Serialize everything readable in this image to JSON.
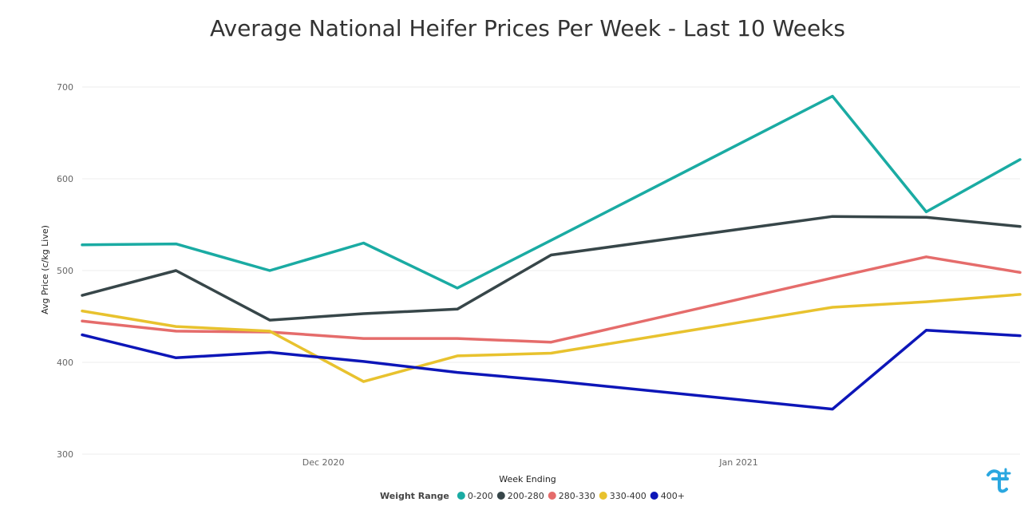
{
  "chart_data": {
    "type": "line",
    "title": "Average National Heifer Prices Per Week - Last 10 Weeks",
    "xlabel": "Week Ending",
    "ylabel": "Avg Price (c/kg Live)",
    "ylim": [
      300,
      700
    ],
    "yticks": [
      "300",
      "400",
      "500",
      "600",
      "700"
    ],
    "xlim": [
      "2020-11-13",
      "2021-01-22"
    ],
    "xtick_labels": [
      {
        "label": "Dec 2020",
        "date": "2020-12-01"
      },
      {
        "label": "Jan 2021",
        "date": "2021-01-01"
      }
    ],
    "x": [
      "2020-11-13",
      "2020-11-20",
      "2020-11-27",
      "2020-12-04",
      "2020-12-11",
      "2020-12-18",
      "2021-01-08",
      "2021-01-15",
      "2021-01-22"
    ],
    "legend_title": "Weight Range",
    "legend_position": "bottom",
    "grid": true,
    "series": [
      {
        "name": "0-200",
        "color": "#1aaba3",
        "points": [
          [
            "2020-11-13",
            528
          ],
          [
            "2020-11-20",
            529
          ],
          [
            "2020-11-27",
            500
          ],
          [
            "2020-12-04",
            530
          ],
          [
            "2020-12-11",
            481
          ],
          [
            "2020-12-18",
            533
          ],
          [
            "2021-01-08",
            690
          ],
          [
            "2021-01-15",
            564
          ],
          [
            "2021-01-22",
            621
          ]
        ]
      },
      {
        "name": "200-280",
        "color": "#374649",
        "points": [
          [
            "2020-11-13",
            473
          ],
          [
            "2020-11-20",
            500
          ],
          [
            "2020-11-27",
            446
          ],
          [
            "2020-12-04",
            453
          ],
          [
            "2020-12-11",
            458
          ],
          [
            "2020-12-18",
            517
          ],
          [
            "2021-01-08",
            559
          ],
          [
            "2021-01-15",
            558
          ],
          [
            "2021-01-22",
            548
          ]
        ]
      },
      {
        "name": "280-330",
        "color": "#e56c6b",
        "points": [
          [
            "2020-11-13",
            445
          ],
          [
            "2020-11-20",
            434
          ],
          [
            "2020-11-27",
            433
          ],
          [
            "2020-12-04",
            426
          ],
          [
            "2020-12-11",
            426
          ],
          [
            "2020-12-18",
            422
          ],
          [
            "2021-01-08",
            492
          ],
          [
            "2021-01-15",
            515
          ],
          [
            "2021-01-22",
            498
          ]
        ]
      },
      {
        "name": "330-400",
        "color": "#e8c22e",
        "points": [
          [
            "2020-11-13",
            456
          ],
          [
            "2020-11-20",
            439
          ],
          [
            "2020-11-27",
            434
          ],
          [
            "2020-12-04",
            379
          ],
          [
            "2020-12-11",
            407
          ],
          [
            "2020-12-18",
            410
          ],
          [
            "2021-01-08",
            460
          ],
          [
            "2021-01-15",
            466
          ],
          [
            "2021-01-22",
            474
          ]
        ]
      },
      {
        "name": "400+",
        "color": "#0d16b8",
        "points": [
          [
            "2020-11-13",
            430
          ],
          [
            "2020-11-20",
            405
          ],
          [
            "2020-11-27",
            411
          ],
          [
            "2020-12-04",
            401
          ],
          [
            "2020-12-11",
            389
          ],
          [
            "2020-12-18",
            380
          ],
          [
            "2021-01-08",
            349
          ],
          [
            "2021-01-15",
            435
          ],
          [
            "2021-01-22",
            429
          ]
        ]
      }
    ]
  },
  "logo": {
    "name": "cross-logo-icon",
    "color": "#2aa7e0"
  }
}
